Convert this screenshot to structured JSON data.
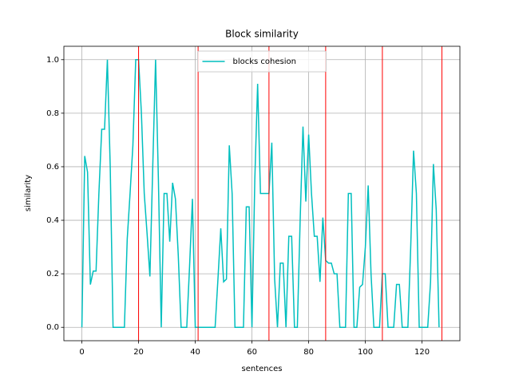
{
  "chart_data": {
    "type": "line",
    "title": "Block similarity",
    "xlabel": "sentences",
    "ylabel": "similarity",
    "x": [
      0,
      1,
      2,
      3,
      4,
      5,
      6,
      7,
      8,
      9,
      10,
      11,
      12,
      13,
      14,
      15,
      16,
      17,
      18,
      19,
      20,
      21,
      22,
      23,
      24,
      25,
      26,
      27,
      28,
      29,
      30,
      31,
      32,
      33,
      34,
      35,
      36,
      37,
      38,
      39,
      40,
      41,
      42,
      43,
      44,
      45,
      46,
      47,
      48,
      49,
      50,
      51,
      52,
      53,
      54,
      55,
      56,
      57,
      58,
      59,
      60,
      61,
      62,
      63,
      64,
      65,
      66,
      67,
      68,
      69,
      70,
      71,
      72,
      73,
      74,
      75,
      76,
      77,
      78,
      79,
      80,
      81,
      82,
      83,
      84,
      85,
      86,
      87,
      88,
      89,
      90,
      91,
      92,
      93,
      94,
      95,
      96,
      97,
      98,
      99,
      100,
      101,
      102,
      103,
      104,
      105,
      106,
      107,
      108,
      109,
      110,
      111,
      112,
      113,
      114,
      115,
      116,
      117,
      118,
      119,
      120,
      121,
      122,
      123,
      124,
      125,
      126
    ],
    "series": [
      {
        "name": "blocks cohesion",
        "color": "#00bfbf",
        "values": [
          0,
          0.64,
          0.58,
          0.16,
          0.21,
          0.21,
          0.5,
          0.74,
          0.74,
          1.0,
          0.6,
          0,
          0,
          0,
          0,
          0,
          0.33,
          0.5,
          0.68,
          1.0,
          1.0,
          0.8,
          0.5,
          0.35,
          0.19,
          0.6,
          1.0,
          0.55,
          0,
          0.5,
          0.5,
          0.32,
          0.54,
          0.48,
          0.27,
          0,
          0,
          0,
          0.23,
          0.48,
          0,
          0,
          0,
          0,
          0,
          0,
          0,
          0,
          0.18,
          0.37,
          0.17,
          0.18,
          0.68,
          0.5,
          0,
          0,
          0,
          0,
          0.45,
          0.45,
          0,
          0.55,
          0.91,
          0.5,
          0.5,
          0.5,
          0.5,
          0.69,
          0.18,
          0,
          0.24,
          0.24,
          0,
          0.34,
          0.34,
          0,
          0,
          0.4,
          0.75,
          0.47,
          0.72,
          0.5,
          0.34,
          0.34,
          0.17,
          0.41,
          0.25,
          0.24,
          0.24,
          0.2,
          0.2,
          0,
          0,
          0,
          0.5,
          0.5,
          0,
          0,
          0.15,
          0.16,
          0.3,
          0.53,
          0.2,
          0,
          0,
          0,
          0.2,
          0.2,
          0,
          0,
          0,
          0.16,
          0.16,
          0,
          0,
          0,
          0.3,
          0.66,
          0.5,
          0,
          0,
          0,
          0,
          0.17,
          0.61,
          0.44,
          0
        ]
      }
    ],
    "vlines": [
      20,
      41,
      66,
      86,
      106,
      127
    ],
    "vline_color": "#ff0000",
    "xlim": [
      -6.35,
      133.35
    ],
    "ylim": [
      -0.05,
      1.05
    ],
    "xticks": [
      0,
      20,
      40,
      60,
      80,
      100,
      120
    ],
    "yticks": [
      {
        "value": 0,
        "label": "0.0"
      },
      0.2,
      0.4,
      0.6,
      0.8,
      {
        "value": 1,
        "label": "1.0"
      }
    ],
    "grid": true,
    "legend": "upper center"
  }
}
